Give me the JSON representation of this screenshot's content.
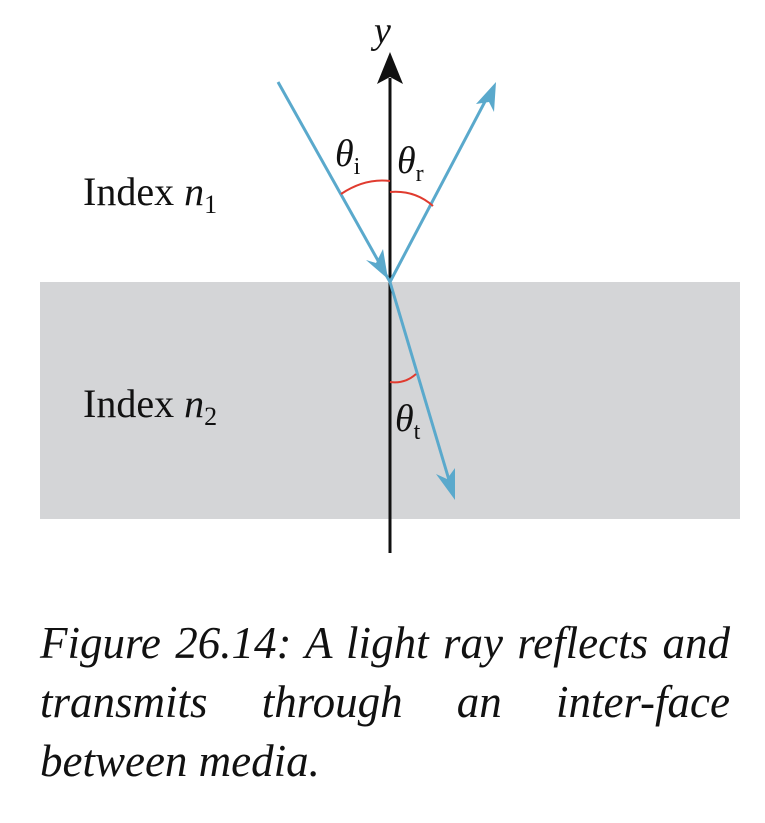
{
  "axis": {
    "label": "y"
  },
  "media": {
    "upper": {
      "prefix": "Index ",
      "symbol": "n",
      "subscript": "1"
    },
    "lower": {
      "prefix": "Index ",
      "symbol": "n",
      "subscript": "2"
    }
  },
  "angles": {
    "incident": {
      "symbol": "θ",
      "subscript": "i"
    },
    "reflected": {
      "symbol": "θ",
      "subscript": "r"
    },
    "transmitted": {
      "symbol": "θ",
      "subscript": "t"
    }
  },
  "caption": "Figure 26.14: A light ray reflects and transmits through an inter-face between media.",
  "colors": {
    "ray": "#5aa9cc",
    "angle_arc": "#e03b2f",
    "medium_2": "#d4d5d7",
    "axis": "#111111"
  },
  "icons": [
    "arrow-head-icon"
  ]
}
